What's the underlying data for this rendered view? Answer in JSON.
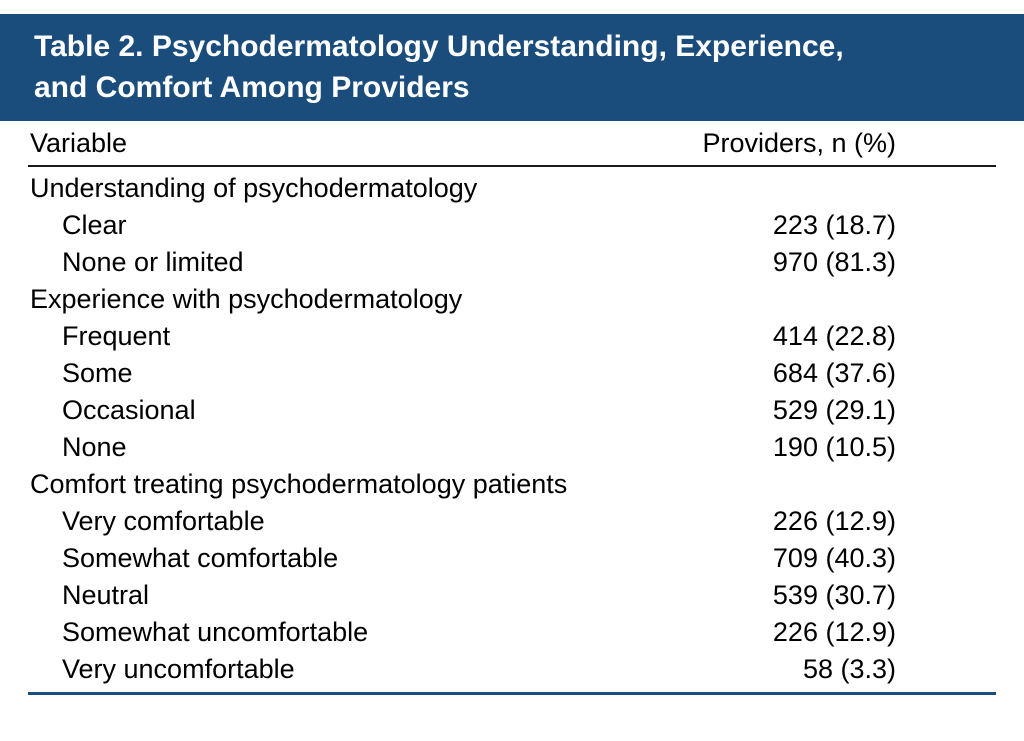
{
  "colors": {
    "accent": "#1b4d7c",
    "text": "#000000"
  },
  "table": {
    "title_lines": [
      "Table 2. Psychodermatology Understanding, Experience,",
      "and Comfort Among Providers"
    ],
    "columns": {
      "variable": "Variable",
      "providers": "Providers, n (%)"
    },
    "rows": [
      {
        "type": "group",
        "label": "Understanding of psychodermatology",
        "value": ""
      },
      {
        "type": "item",
        "label": "Clear",
        "value": "223 (18.7)"
      },
      {
        "type": "item",
        "label": "None or limited",
        "value": "970 (81.3)"
      },
      {
        "type": "group",
        "label": "Experience with psychodermatology",
        "value": ""
      },
      {
        "type": "item",
        "label": "Frequent",
        "value": "414 (22.8)"
      },
      {
        "type": "item",
        "label": "Some",
        "value": "684 (37.6)"
      },
      {
        "type": "item",
        "label": "Occasional",
        "value": "529 (29.1)"
      },
      {
        "type": "item",
        "label": "None",
        "value": "190 (10.5)"
      },
      {
        "type": "group",
        "label": "Comfort treating psychodermatology patients",
        "value": ""
      },
      {
        "type": "item",
        "label": "Very comfortable",
        "value": "226 (12.9)"
      },
      {
        "type": "item",
        "label": "Somewhat comfortable",
        "value": "709 (40.3)"
      },
      {
        "type": "item",
        "label": "Neutral",
        "value": "539 (30.7)"
      },
      {
        "type": "item",
        "label": "Somewhat uncomfortable",
        "value": "226 (12.9)"
      },
      {
        "type": "item",
        "label": "Very uncomfortable",
        "value": "58 (3.3)"
      }
    ]
  }
}
